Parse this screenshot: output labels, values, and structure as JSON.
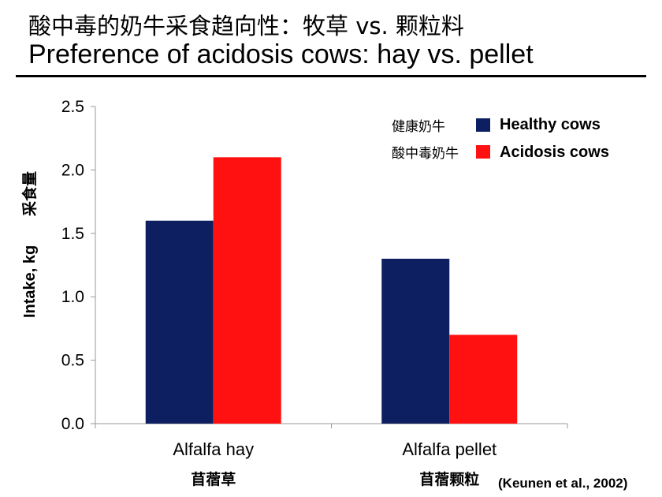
{
  "title_cn": "酸中毒的奶牛采食趋向性：牧草 vs. 颗粒料",
  "title_en": "Preference of acidosis cows: hay vs. pellet",
  "chart_data": {
    "type": "bar",
    "categories": [
      "Alfalfa hay",
      "Alfalfa pellet"
    ],
    "categories_cn": [
      "苜蓿草",
      "苜蓿颗粒"
    ],
    "series": [
      {
        "name": "Healthy cows",
        "name_cn": "健康奶牛",
        "color": "#0d1f60",
        "values": [
          1.6,
          1.3
        ]
      },
      {
        "name": "Acidosis cows",
        "name_cn": "酸中毒奶牛",
        "color": "#ff1111",
        "values": [
          2.1,
          0.7
        ]
      }
    ],
    "ylabel": "Intake, kg",
    "ylabel_cn": "采食量",
    "ylim": [
      0,
      2.5
    ],
    "yticks": [
      "0.0",
      "0.5",
      "1.0",
      "1.5",
      "2.0",
      "2.5"
    ],
    "grid": false,
    "legend_position": "top-right"
  },
  "citation": "(Keunen et al., 2002)"
}
